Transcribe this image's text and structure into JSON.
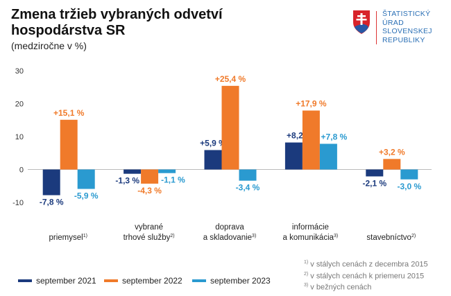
{
  "header": {
    "title": "Zmena tržieb vybraných odvetví hospodárstva SR",
    "subtitle": "(medziročne v %)"
  },
  "logo": {
    "lines": [
      "ŠTATISTICKÝ",
      "ÚRAD",
      "SLOVENSKEJ",
      "REPUBLIKY"
    ]
  },
  "chart_data": {
    "type": "bar",
    "title": "Zmena tržieb vybraných odvetví hospodárstva SR",
    "ylabel": "(medziročne v %)",
    "ylim": [
      -10,
      30
    ],
    "yticks": [
      -10,
      0,
      10,
      20,
      30
    ],
    "categories": [
      {
        "lines": [
          "priemysel"
        ],
        "note": "1)"
      },
      {
        "lines": [
          "vybrané",
          "trhové služby"
        ],
        "note": "2)"
      },
      {
        "lines": [
          "doprava",
          "a skladovanie"
        ],
        "note": "3)"
      },
      {
        "lines": [
          "informácie",
          "a komunikácia"
        ],
        "note": "3)"
      },
      {
        "lines": [
          "stavebníctvo"
        ],
        "note": "2)"
      }
    ],
    "series": [
      {
        "name": "september 2021",
        "color": "#1b3a7d",
        "values": [
          -7.8,
          -1.3,
          5.9,
          8.2,
          -2.1
        ],
        "labels": [
          "-7,8 %",
          "-1,3 %",
          "+5,9 %",
          "+8,2 %",
          "-2,1 %"
        ]
      },
      {
        "name": "september 2022",
        "color": "#f07a2a",
        "values": [
          15.1,
          -4.3,
          25.4,
          17.9,
          3.2
        ],
        "labels": [
          "+15,1 %",
          "-4,3 %",
          "+25,4 %",
          "+17,9 %",
          "+3,2 %"
        ]
      },
      {
        "name": "september 2023",
        "color": "#2a9ad0",
        "values": [
          -5.9,
          -1.1,
          -3.4,
          7.8,
          -3.0
        ],
        "labels": [
          "-5,9 %",
          "-1,1 %",
          "-3,4 %",
          "+7,8 %",
          "-3,0 %"
        ]
      }
    ],
    "grid": false,
    "legend": "bottom-left"
  },
  "notes": [
    {
      "mark": "1)",
      "text": "v stálych cenách z decembra 2015"
    },
    {
      "mark": "2)",
      "text": "v stálych cenách k priemeru 2015"
    },
    {
      "mark": "3)",
      "text": "v bežných cenách"
    }
  ]
}
